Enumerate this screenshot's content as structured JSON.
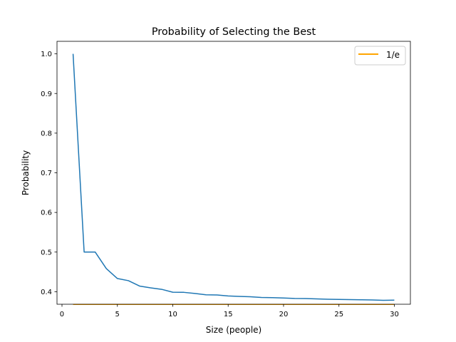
{
  "chart_data": {
    "type": "line",
    "title": "Probability of Selecting the Best",
    "xlabel": "Size (people)",
    "ylabel": "Probability",
    "xlim": [
      -0.45,
      31.45
    ],
    "ylim": [
      0.3684,
      1.0316
    ],
    "x_ticks": [
      0,
      5,
      10,
      15,
      20,
      25,
      30
    ],
    "y_ticks": [
      0.4,
      0.5,
      0.6,
      0.7,
      0.8,
      0.9,
      1.0
    ],
    "x_tick_labels": [
      "0",
      "5",
      "10",
      "15",
      "20",
      "25",
      "30"
    ],
    "y_tick_labels": [
      "0.4",
      "0.5",
      "0.6",
      "0.7",
      "0.8",
      "0.9",
      "1.0"
    ],
    "grid": false,
    "legend": {
      "placement": "top-right",
      "entries": [
        "1/e"
      ]
    },
    "series": [
      {
        "color": "#1f77b4",
        "x": [
          1,
          2,
          3,
          4,
          5,
          6,
          7,
          8,
          9,
          10,
          11,
          12,
          13,
          14,
          15,
          16,
          17,
          18,
          19,
          20,
          21,
          22,
          23,
          24,
          25,
          26,
          27,
          28,
          29,
          30
        ],
        "y": [
          1.0,
          0.5,
          0.5,
          0.4583,
          0.4333,
          0.4278,
          0.4143,
          0.4098,
          0.406,
          0.3987,
          0.3984,
          0.3955,
          0.3923,
          0.3917,
          0.3894,
          0.3881,
          0.3873,
          0.3854,
          0.385,
          0.3842,
          0.3829,
          0.3828,
          0.3818,
          0.3809,
          0.3805,
          0.38,
          0.3796,
          0.3792,
          0.3783,
          0.3787
        ]
      },
      {
        "name": "1/e",
        "color": "#ffa500",
        "x": [
          1,
          30
        ],
        "y": [
          0.3679,
          0.3679
        ]
      }
    ]
  }
}
